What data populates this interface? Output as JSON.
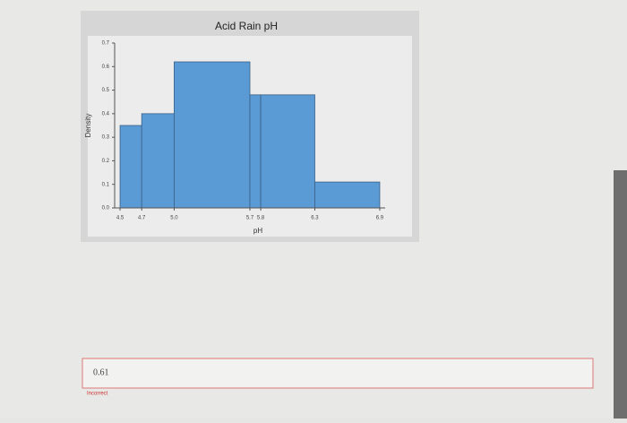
{
  "chart_data": {
    "type": "histogram",
    "title": "Acid Rain pH",
    "x_label": "pH",
    "y_label": "Density",
    "bins": [
      4.5,
      4.7,
      5.0,
      5.7,
      5.8,
      6.3,
      6.9
    ],
    "values": [
      0.35,
      0.4,
      0.62,
      0.48,
      0.48,
      0.11
    ],
    "color": "#5b9bd5",
    "xlim": [
      4.45,
      6.95
    ],
    "xticks": [
      4.5,
      4.7,
      {
        "value": 5.0,
        "label": "5.0"
      },
      5.7,
      5.8,
      6.3,
      6.9
    ],
    "ylim": [
      0,
      0.7
    ],
    "yticks": [
      {
        "value": 0,
        "label": "0.0"
      },
      0.1,
      0.2,
      0.3,
      0.4,
      0.5,
      0.6,
      0.7
    ]
  },
  "answer": {
    "value": "0.61",
    "feedback": "Incorrect"
  }
}
